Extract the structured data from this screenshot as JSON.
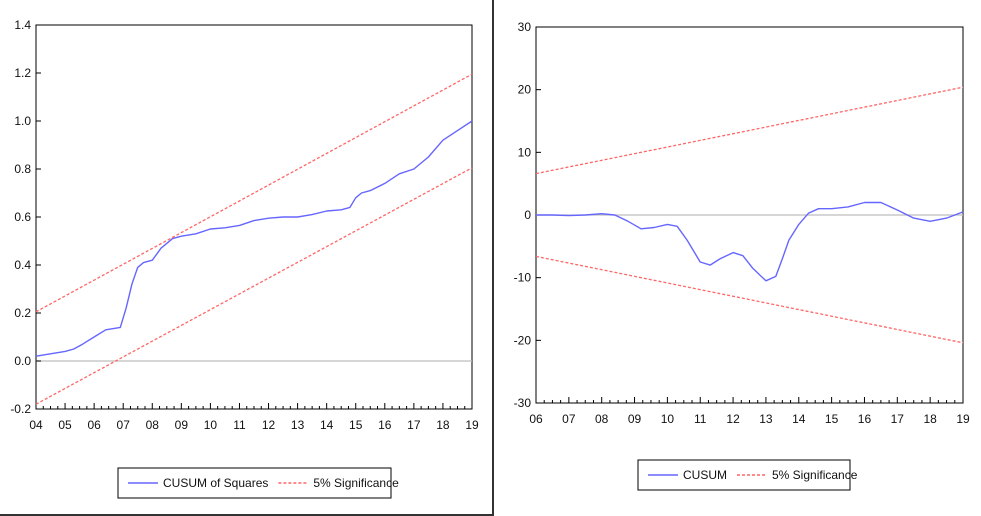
{
  "chart_data": [
    {
      "type": "line",
      "title": "",
      "xlabel": "",
      "ylabel": "",
      "xlim": [
        2004,
        2019
      ],
      "ylim": [
        -0.2,
        1.4
      ],
      "x_ticks": [
        2004,
        2005,
        2006,
        2007,
        2008,
        2009,
        2010,
        2011,
        2012,
        2013,
        2014,
        2015,
        2016,
        2017,
        2018,
        2019
      ],
      "x_tick_labels": [
        "04",
        "05",
        "06",
        "07",
        "08",
        "09",
        "10",
        "11",
        "12",
        "13",
        "14",
        "15",
        "16",
        "17",
        "18",
        "19"
      ],
      "y_ticks": [
        -0.2,
        0.0,
        0.2,
        0.4,
        0.6,
        0.8,
        1.0,
        1.2,
        1.4
      ],
      "y_tick_labels": [
        "-0.2",
        "0.0",
        "0.2",
        "0.4",
        "0.6",
        "0.8",
        "1.0",
        "1.2",
        "1.4"
      ],
      "zero_line": 0,
      "grid": false,
      "legend_position": "bottom",
      "series": [
        {
          "name": "CUSUM of Squares",
          "color": "#6666ff",
          "style": "solid",
          "x": [
            2004.0,
            2004.5,
            2005.0,
            2005.3,
            2005.6,
            2006.0,
            2006.4,
            2006.9,
            2007.1,
            2007.3,
            2007.5,
            2007.7,
            2008.0,
            2008.3,
            2008.7,
            2009.0,
            2009.5,
            2010.0,
            2010.5,
            2011.0,
            2011.5,
            2012.0,
            2012.5,
            2013.0,
            2013.5,
            2014.0,
            2014.5,
            2014.8,
            2015.0,
            2015.2,
            2015.5,
            2016.0,
            2016.5,
            2017.0,
            2017.5,
            2018.0,
            2018.5,
            2019.0
          ],
          "y": [
            0.02,
            0.03,
            0.04,
            0.05,
            0.07,
            0.1,
            0.13,
            0.14,
            0.22,
            0.32,
            0.39,
            0.41,
            0.42,
            0.47,
            0.51,
            0.52,
            0.53,
            0.55,
            0.555,
            0.565,
            0.585,
            0.595,
            0.6,
            0.6,
            0.61,
            0.625,
            0.63,
            0.64,
            0.68,
            0.7,
            0.71,
            0.74,
            0.78,
            0.8,
            0.85,
            0.92,
            0.96,
            1.0
          ]
        },
        {
          "name": "5% Significance",
          "color": "#ff6666",
          "style": "dashed",
          "x": [
            2004,
            2019
          ],
          "y": [
            0.205,
            1.195
          ]
        },
        {
          "name": "",
          "color": "#ff6666",
          "style": "dashed",
          "x": [
            2004,
            2019
          ],
          "y": [
            -0.18,
            0.805
          ]
        }
      ]
    },
    {
      "type": "line",
      "title": "",
      "xlabel": "",
      "ylabel": "",
      "xlim": [
        2006,
        2019
      ],
      "ylim": [
        -30,
        30
      ],
      "x_ticks": [
        2006,
        2007,
        2008,
        2009,
        2010,
        2011,
        2012,
        2013,
        2014,
        2015,
        2016,
        2017,
        2018,
        2019
      ],
      "x_tick_labels": [
        "06",
        "07",
        "08",
        "09",
        "10",
        "11",
        "12",
        "13",
        "14",
        "15",
        "16",
        "17",
        "18",
        "19"
      ],
      "y_ticks": [
        -30,
        -20,
        -10,
        0,
        10,
        20,
        30
      ],
      "y_tick_labels": [
        "-30",
        "-20",
        "-10",
        "0",
        "10",
        "20",
        "30"
      ],
      "zero_line": 0,
      "grid": false,
      "legend_position": "bottom",
      "series": [
        {
          "name": "CUSUM",
          "color": "#6666ff",
          "style": "solid",
          "x": [
            2006.0,
            2006.5,
            2007.0,
            2007.5,
            2008.0,
            2008.4,
            2008.8,
            2009.2,
            2009.6,
            2010.0,
            2010.3,
            2010.6,
            2011.0,
            2011.3,
            2011.6,
            2012.0,
            2012.3,
            2012.6,
            2013.0,
            2013.3,
            2013.5,
            2013.7,
            2014.0,
            2014.3,
            2014.6,
            2015.0,
            2015.5,
            2016.0,
            2016.5,
            2017.0,
            2017.5,
            2018.0,
            2018.5,
            2019.0
          ],
          "y": [
            0.0,
            0.0,
            -0.1,
            0.0,
            0.2,
            0.0,
            -1.0,
            -2.2,
            -2.0,
            -1.5,
            -1.8,
            -4.0,
            -7.5,
            -8.0,
            -7.0,
            -6.0,
            -6.5,
            -8.5,
            -10.5,
            -9.8,
            -7.0,
            -4.0,
            -1.5,
            0.3,
            1.0,
            1.0,
            1.3,
            2.0,
            2.0,
            0.8,
            -0.5,
            -1.0,
            -0.5,
            0.5
          ]
        },
        {
          "name": "5% Significance",
          "color": "#ff6666",
          "style": "dashed",
          "x": [
            2006,
            2019
          ],
          "y": [
            6.6,
            20.4
          ]
        },
        {
          "name": "",
          "color": "#ff6666",
          "style": "dashed",
          "x": [
            2006,
            2019
          ],
          "y": [
            -6.6,
            -20.4
          ]
        }
      ]
    }
  ]
}
